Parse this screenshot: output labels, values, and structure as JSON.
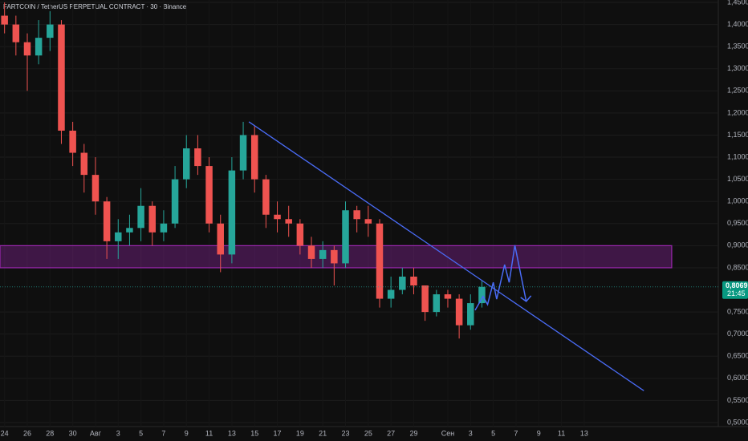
{
  "chart_data": {
    "type": "candlestick",
    "title": "FARTCOIN / TetherUS PERPETUAL CONTRACT · 30 · Binance",
    "up_color": "#26a69a",
    "down_color": "#ef5350",
    "grid": true,
    "xlim": [
      -0.4,
      62.8
    ],
    "ylim": [
      0.5,
      1.45
    ],
    "xticks": [
      {
        "value": 0,
        "label": "24"
      },
      {
        "value": 2,
        "label": "26"
      },
      {
        "value": 4,
        "label": "28"
      },
      {
        "value": 6,
        "label": "30"
      },
      {
        "value": 8,
        "label": "Авг"
      },
      {
        "value": 10,
        "label": "3"
      },
      {
        "value": 12,
        "label": "5"
      },
      {
        "value": 14,
        "label": "7"
      },
      {
        "value": 16,
        "label": "9"
      },
      {
        "value": 18,
        "label": "11"
      },
      {
        "value": 20,
        "label": "13"
      },
      {
        "value": 22,
        "label": "15"
      },
      {
        "value": 24,
        "label": "17"
      },
      {
        "value": 26,
        "label": "19"
      },
      {
        "value": 28,
        "label": "21"
      },
      {
        "value": 30,
        "label": "23"
      },
      {
        "value": 32,
        "label": "25"
      },
      {
        "value": 34,
        "label": "27"
      },
      {
        "value": 36,
        "label": "29"
      },
      {
        "value": 39,
        "label": "Сен"
      },
      {
        "value": 41,
        "label": "3"
      },
      {
        "value": 43,
        "label": "5"
      },
      {
        "value": 45,
        "label": "7"
      },
      {
        "value": 47,
        "label": "9"
      },
      {
        "value": 49,
        "label": "11"
      },
      {
        "value": 51,
        "label": "13"
      }
    ],
    "yticks": [
      {
        "value": 0.5,
        "label": "0,5000"
      },
      {
        "value": 0.55,
        "label": "0,5500"
      },
      {
        "value": 0.6,
        "label": "0,6000"
      },
      {
        "value": 0.65,
        "label": "0,6500"
      },
      {
        "value": 0.7,
        "label": "0,7000"
      },
      {
        "value": 0.75,
        "label": "0,7500"
      },
      {
        "value": 0.85,
        "label": "0,8500"
      },
      {
        "value": 0.9,
        "label": "0,9000"
      },
      {
        "value": 0.95,
        "label": "0,9500"
      },
      {
        "value": 1.0,
        "label": "1,0000"
      },
      {
        "value": 1.05,
        "label": "1,0500"
      },
      {
        "value": 1.1,
        "label": "1,1000"
      },
      {
        "value": 1.15,
        "label": "1,1500"
      },
      {
        "value": 1.2,
        "label": "1,2000"
      },
      {
        "value": 1.25,
        "label": "1,2500"
      },
      {
        "value": 1.3,
        "label": "1,3000"
      },
      {
        "value": 1.35,
        "label": "1,3500"
      },
      {
        "value": 1.4,
        "label": "1,4000"
      },
      {
        "value": 1.45,
        "label": "1,4500"
      }
    ],
    "x": [
      0,
      1,
      2,
      3,
      4,
      5,
      6,
      7,
      8,
      9,
      10,
      11,
      12,
      13,
      14,
      15,
      16,
      17,
      18,
      19,
      20,
      21,
      22,
      23,
      24,
      25,
      26,
      27,
      28,
      29,
      30,
      31,
      32,
      33,
      34,
      35,
      36,
      37,
      38,
      39,
      40,
      41,
      42
    ],
    "open": [
      1.42,
      1.4,
      1.36,
      1.33,
      1.37,
      1.4,
      1.16,
      1.11,
      1.06,
      1.0,
      0.91,
      0.93,
      0.94,
      0.99,
      0.93,
      0.95,
      1.05,
      1.12,
      1.08,
      0.95,
      0.88,
      1.07,
      1.15,
      1.05,
      0.97,
      0.96,
      0.95,
      0.9,
      0.87,
      0.89,
      0.86,
      0.98,
      0.96,
      0.95,
      0.78,
      0.8,
      0.83,
      0.81,
      0.75,
      0.79,
      0.78,
      0.72,
      0.77
    ],
    "high": [
      1.45,
      1.42,
      1.38,
      1.41,
      1.43,
      1.41,
      1.18,
      1.13,
      1.1,
      1.01,
      0.96,
      0.97,
      1.03,
      1.0,
      0.98,
      1.08,
      1.15,
      1.15,
      1.1,
      0.97,
      1.1,
      1.18,
      1.17,
      1.06,
      1.0,
      0.99,
      0.96,
      0.92,
      0.91,
      0.9,
      1.0,
      0.99,
      0.99,
      0.96,
      0.83,
      0.85,
      0.85,
      0.81,
      0.8,
      0.8,
      0.79,
      0.79,
      0.82
    ],
    "low": [
      1.38,
      1.33,
      1.25,
      1.31,
      1.34,
      1.13,
      1.08,
      1.02,
      0.97,
      0.87,
      0.87,
      0.9,
      0.91,
      0.9,
      0.91,
      0.94,
      1.03,
      1.06,
      0.93,
      0.84,
      0.86,
      1.05,
      1.02,
      0.94,
      0.93,
      0.92,
      0.88,
      0.85,
      0.85,
      0.81,
      0.85,
      0.93,
      0.92,
      0.76,
      0.76,
      0.79,
      0.79,
      0.73,
      0.74,
      0.76,
      0.69,
      0.71,
      0.76
    ],
    "close": [
      1.4,
      1.36,
      1.33,
      1.37,
      1.4,
      1.16,
      1.11,
      1.06,
      1.0,
      0.91,
      0.93,
      0.94,
      0.99,
      0.93,
      0.95,
      1.05,
      1.12,
      1.08,
      0.95,
      0.88,
      1.07,
      1.15,
      1.05,
      0.97,
      0.96,
      0.95,
      0.9,
      0.87,
      0.89,
      0.86,
      0.98,
      0.96,
      0.95,
      0.78,
      0.8,
      0.83,
      0.81,
      0.75,
      0.79,
      0.78,
      0.72,
      0.77,
      0.8069
    ],
    "last_price": {
      "value": 0.8069,
      "label": "0,8069"
    },
    "time_left": "21:45",
    "zone": {
      "color": "#9c27b0",
      "xlim": [
        -0.4,
        58.7
      ],
      "ylim": [
        0.85,
        0.9
      ]
    },
    "trendline": {
      "color": "#4a6cf7",
      "x": [
        21.5,
        56.25
      ],
      "y": [
        1.18,
        0.572
      ]
    },
    "projection": {
      "color": "#4a6cf7",
      "x": [
        41.4,
        42.1,
        42.5,
        43.0,
        43.3,
        44.0,
        44.4,
        44.9,
        45.9
      ],
      "y": [
        0.754,
        0.785,
        0.767,
        0.817,
        0.779,
        0.857,
        0.817,
        0.901,
        0.774
      ]
    }
  }
}
